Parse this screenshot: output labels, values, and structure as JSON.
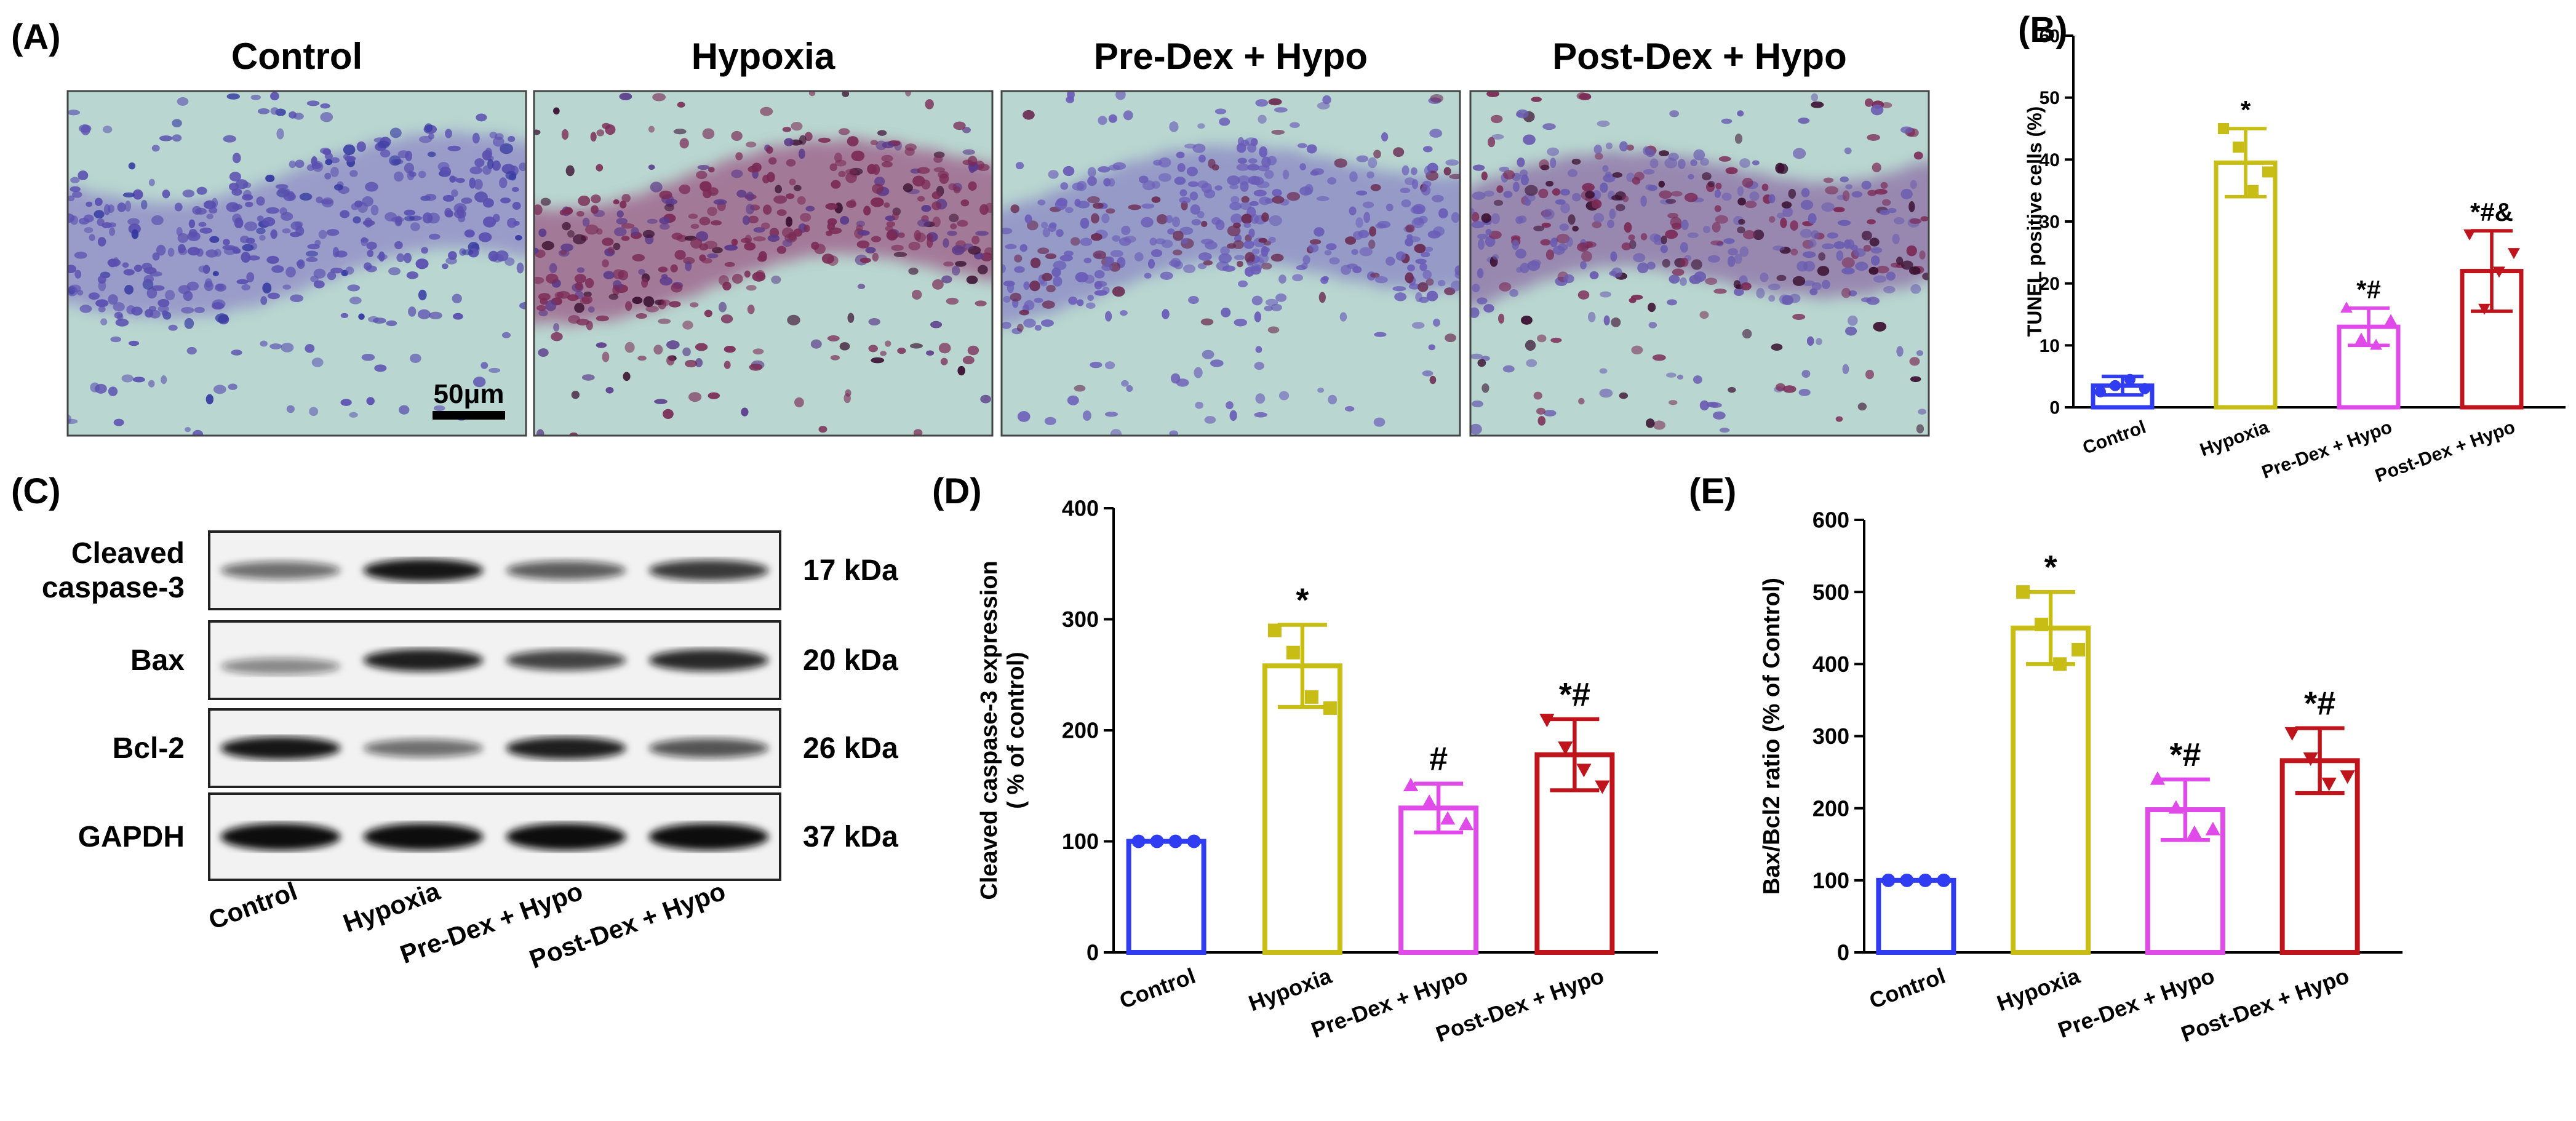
{
  "panel_a": {
    "label": "(A)",
    "images": [
      {
        "title": "Control",
        "stain": "control"
      },
      {
        "title": "Hypoxia",
        "stain": "hypoxia"
      },
      {
        "title": "Pre-Dex + Hypo",
        "stain": "pre"
      },
      {
        "title": "Post-Dex + Hypo",
        "stain": "post"
      }
    ],
    "scale_bar": "50μm"
  },
  "panel_c": {
    "label": "(C)",
    "bands": [
      {
        "name_lines": [
          "Cleaved",
          "caspase-3"
        ],
        "kda": "17 kDa",
        "intensity": [
          0.45,
          0.95,
          0.55,
          0.75
        ]
      },
      {
        "name_lines": [
          "Bax"
        ],
        "kda": "20 kDa",
        "intensity": [
          0.3,
          0.9,
          0.7,
          0.85
        ]
      },
      {
        "name_lines": [
          "Bcl-2"
        ],
        "kda": "26 kDa",
        "intensity": [
          0.95,
          0.45,
          0.9,
          0.6
        ]
      },
      {
        "name_lines": [
          "GAPDH"
        ],
        "kda": "37 kDa",
        "intensity": [
          1.0,
          1.0,
          1.0,
          1.0
        ]
      }
    ],
    "lanes": [
      "Control",
      "Hypoxia",
      "Pre-Dex + Hypo",
      "Post-Dex + Hypo"
    ]
  },
  "colors": {
    "control": "#2f3cf2",
    "hypoxia": "#c7bd14",
    "pre": "#e04ae8",
    "post": "#c0141c"
  },
  "chart_data": [
    {
      "id": "B",
      "label": "(B)",
      "type": "bar",
      "categories": [
        "Control",
        "Hypoxia",
        "Pre-Dex + Hypo",
        "Post-Dex + Hypo"
      ],
      "values": [
        3.5,
        39.5,
        13,
        22
      ],
      "sd": [
        1.5,
        5.5,
        3,
        6.5
      ],
      "points": [
        [
          2.5,
          3.5,
          4.5,
          3
        ],
        [
          45,
          42,
          35,
          38
        ],
        [
          16,
          11,
          10,
          14
        ],
        [
          28,
          16,
          22,
          25
        ]
      ],
      "markers": [
        "circle",
        "square",
        "triangle",
        "triangle-down"
      ],
      "annotations": [
        "",
        "*",
        "*#",
        "*#&"
      ],
      "ylabel": "TUNEL positive cells (%)",
      "ylim": [
        0,
        60
      ],
      "yticks": [
        0,
        10,
        20,
        30,
        40,
        50,
        60
      ]
    },
    {
      "id": "D",
      "label": "(D)",
      "type": "bar",
      "categories": [
        "Control",
        "Hypoxia",
        "Pre-Dex + Hypo",
        "Post-Dex + Hypo"
      ],
      "values": [
        100,
        258,
        130,
        178
      ],
      "sd": [
        0,
        37,
        22,
        32
      ],
      "points": [
        [
          100,
          100,
          100,
          100
        ],
        [
          290,
          270,
          230,
          220
        ],
        [
          150,
          135,
          120,
          115
        ],
        [
          210,
          185,
          165,
          150
        ]
      ],
      "markers": [
        "circle",
        "square",
        "triangle",
        "triangle-down"
      ],
      "annotations": [
        "",
        "*",
        "#",
        "*#"
      ],
      "ylabel": "Cleaved caspase-3 expression",
      "ylabel2": "( % of control)",
      "ylim": [
        0,
        400
      ],
      "yticks": [
        0,
        100,
        200,
        300,
        400
      ]
    },
    {
      "id": "E",
      "label": "(E)",
      "type": "bar",
      "categories": [
        "Control",
        "Hypoxia",
        "Pre-Dex + Hypo",
        "Post-Dex + Hypo"
      ],
      "values": [
        100,
        450,
        198,
        266
      ],
      "sd": [
        0,
        50,
        42,
        45
      ],
      "points": [
        [
          100,
          100,
          100,
          100
        ],
        [
          500,
          455,
          400,
          420
        ],
        [
          240,
          200,
          165,
          170
        ],
        [
          305,
          270,
          235,
          245
        ]
      ],
      "markers": [
        "circle",
        "square",
        "triangle",
        "triangle-down"
      ],
      "annotations": [
        "",
        "*",
        "*#",
        "*#"
      ],
      "ylabel": "Bax/Bcl2 ratio (% of Control)",
      "ylim": [
        0,
        600
      ],
      "yticks": [
        0,
        100,
        200,
        300,
        400,
        500,
        600
      ]
    }
  ]
}
